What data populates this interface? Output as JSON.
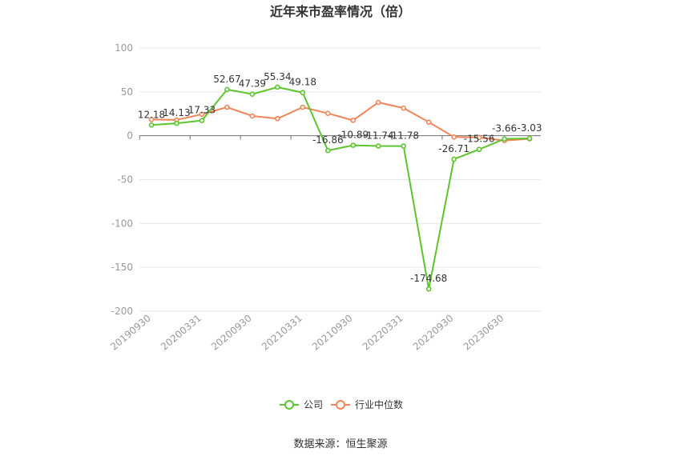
{
  "chart_data": {
    "type": "line",
    "title": "近年来市盈率情况（倍）",
    "source_text": "数据来源：恒生聚源",
    "ylim": [
      -200,
      100
    ],
    "yticks": [
      100,
      50,
      0,
      -50,
      -100,
      -150,
      -200
    ],
    "x_tick_labels": [
      "20190930",
      "20200331",
      "20200930",
      "20210331",
      "20210930",
      "20220331",
      "20220930",
      "20230630"
    ],
    "grid": true,
    "legend_position": "bottom",
    "series": [
      {
        "name": "公司",
        "color": "#5cc52d",
        "values": [
          12.18,
          14.13,
          17.33,
          52.67,
          47.39,
          55.34,
          49.18,
          -16.86,
          -10.89,
          -11.74,
          -11.78,
          -174.68,
          -26.71,
          -15.56,
          -3.66,
          -3.03
        ],
        "labels": [
          "12.18",
          "14.13",
          "17.33",
          "52.67",
          "47.39",
          "55.34",
          "49.18",
          "-16.86",
          "-10.89",
          "-11.74",
          "-11.78",
          "-174.68",
          "-26.71",
          "-15.56",
          "-3.66",
          "-3.03"
        ]
      },
      {
        "name": "行业中位数",
        "color": "#f0845a",
        "values": [
          18.5,
          18.0,
          24.5,
          32.5,
          22.5,
          19.5,
          32.5,
          25.5,
          17.5,
          38.0,
          31.5,
          15.5,
          -1.5,
          -2.0,
          -5.5,
          -3.5
        ]
      }
    ]
  }
}
